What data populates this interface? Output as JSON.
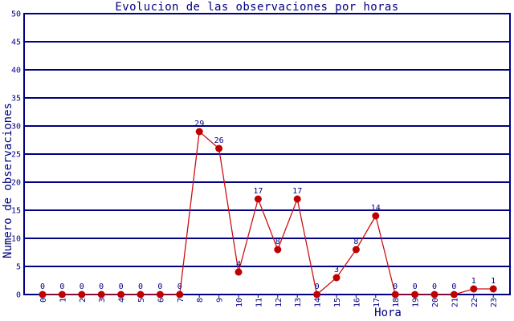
{
  "chart_data": {
    "type": "line",
    "title": "Evolucion de las observaciones por horas",
    "xlabel": "Hora",
    "ylabel": "Numero de observaciones",
    "categories": [
      "0",
      "1",
      "2",
      "3",
      "4",
      "5",
      "6",
      "7",
      "8",
      "9",
      "10",
      "11",
      "12",
      "13",
      "14",
      "15",
      "16",
      "17",
      "18",
      "19",
      "20",
      "21",
      "22",
      "23"
    ],
    "values": [
      0,
      0,
      0,
      0,
      0,
      0,
      0,
      0,
      29,
      26,
      4,
      17,
      8,
      17,
      0,
      3,
      8,
      14,
      0,
      0,
      0,
      0,
      1,
      1
    ],
    "point_labels": [
      0,
      0,
      0,
      0,
      0,
      0,
      0,
      0,
      29,
      26,
      4,
      17,
      8,
      17,
      0,
      3,
      8,
      14,
      0,
      0,
      0,
      0,
      1,
      1
    ],
    "ylim": [
      0,
      50
    ],
    "yticks": [
      0,
      5,
      10,
      15,
      20,
      25,
      30,
      35,
      40,
      45,
      50
    ],
    "grid": "horizontal",
    "legend": "none",
    "marker": "filled-circle",
    "colors": {
      "axis": "#000080",
      "grid": "#000080",
      "text": "#000080",
      "line": "#cc1111",
      "marker": "#c00000",
      "background": "#ffffff"
    }
  }
}
